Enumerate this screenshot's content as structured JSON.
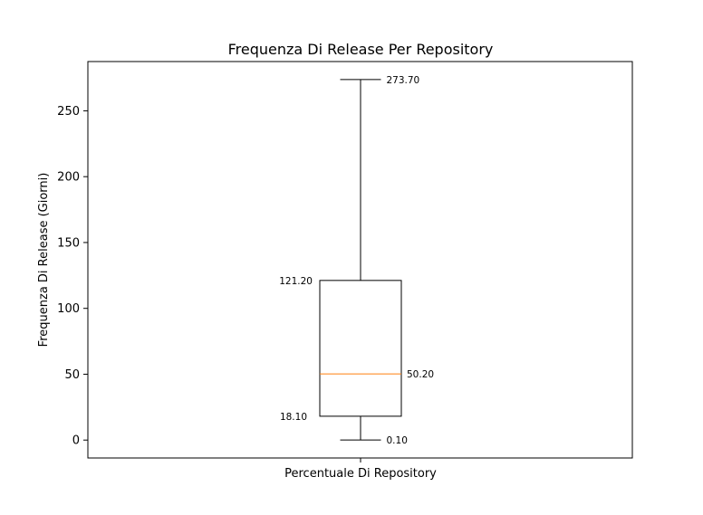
{
  "chart_data": {
    "type": "boxplot",
    "title": "Frequenza Di Release Per Repository",
    "xlabel": "Percentuale Di Repository",
    "ylabel": "Frequenza Di Release (Giorni)",
    "ylim": [
      -13.6,
      287.4
    ],
    "yticks": [
      0,
      50,
      100,
      150,
      200,
      250
    ],
    "grid": false,
    "box": {
      "whisker_low": 0.1,
      "q1": 18.1,
      "median": 50.2,
      "q3": 121.2,
      "whisker_high": 273.7
    },
    "annotations": {
      "whisker_high": "273.70",
      "q3": "121.20",
      "median": "50.20",
      "q1": "18.10",
      "whisker_low": "0.10"
    },
    "colors": {
      "box": "#000000",
      "median": "#ff7f0e"
    }
  }
}
